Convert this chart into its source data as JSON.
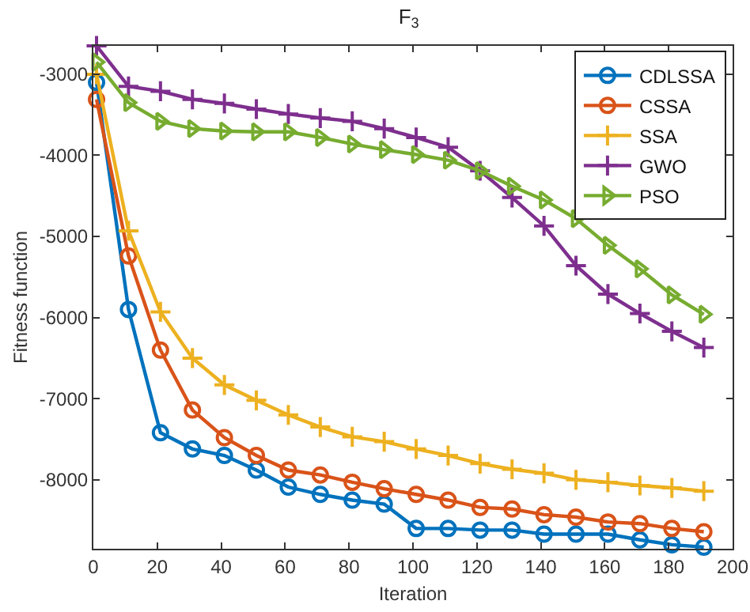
{
  "chart_data": {
    "type": "line",
    "title": "F$_{3}$",
    "xlabel": "Iteration",
    "ylabel": "Fitness function",
    "grid": false,
    "legend": "top right",
    "xlim": [
      0,
      200
    ],
    "xticks": [
      0,
      20,
      40,
      60,
      80,
      100,
      120,
      140,
      160,
      180,
      200
    ],
    "ylim": [
      -8850,
      -2650
    ],
    "yticks": [
      -3000,
      -4000,
      -5000,
      -6000,
      -7000,
      -8000
    ],
    "x": [
      1,
      11,
      21,
      31,
      41,
      51,
      61,
      71,
      81,
      91,
      101,
      111,
      121,
      131,
      141,
      151,
      161,
      171,
      181,
      191
    ],
    "series": [
      {
        "name": "CDLSSA",
        "color": "#0072bd",
        "marker": "circle",
        "values": [
          -3100,
          -5900,
          -7420,
          -7620,
          -7700,
          -7880,
          -8090,
          -8180,
          -8250,
          -8300,
          -8600,
          -8600,
          -8620,
          -8620,
          -8670,
          -8670,
          -8670,
          -8740,
          -8800,
          -8830
        ]
      },
      {
        "name": "CSSA",
        "color": "#d95319",
        "marker": "circle",
        "values": [
          -3310,
          -5240,
          -6400,
          -7140,
          -7480,
          -7700,
          -7880,
          -7940,
          -8030,
          -8110,
          -8180,
          -8250,
          -8340,
          -8360,
          -8430,
          -8460,
          -8520,
          -8540,
          -8600,
          -8640
        ]
      },
      {
        "name": "SSA",
        "color": "#edb120",
        "marker": "cross",
        "values": [
          -3000,
          -4930,
          -5930,
          -6500,
          -6830,
          -7020,
          -7200,
          -7350,
          -7470,
          -7530,
          -7620,
          -7700,
          -7800,
          -7870,
          -7920,
          -8000,
          -8030,
          -8070,
          -8100,
          -8140
        ]
      },
      {
        "name": "GWO",
        "color": "#7e2f8e",
        "marker": "cross",
        "values": [
          -2650,
          -3150,
          -3210,
          -3310,
          -3360,
          -3430,
          -3490,
          -3540,
          -3580,
          -3670,
          -3780,
          -3900,
          -4190,
          -4520,
          -4870,
          -5360,
          -5710,
          -5950,
          -6170,
          -6370
        ]
      },
      {
        "name": "PSO",
        "color": "#77ac30",
        "marker": "triangle",
        "values": [
          -2850,
          -3350,
          -3580,
          -3670,
          -3700,
          -3710,
          -3710,
          -3780,
          -3860,
          -3930,
          -3990,
          -4060,
          -4190,
          -4380,
          -4550,
          -4780,
          -5110,
          -5400,
          -5720,
          -5960
        ]
      }
    ]
  }
}
